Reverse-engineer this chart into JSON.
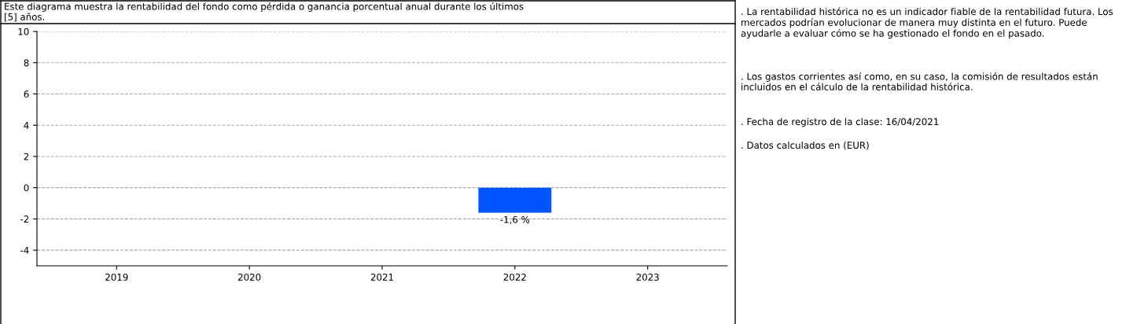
{
  "chart_data": {
    "type": "bar",
    "title": "Este diagrama muestra la rentabilidad del fondo como pérdida o ganancia porcentual anual durante los últimos\n[5] años.",
    "categories": [
      "2019",
      "2020",
      "2021",
      "2022",
      "2023"
    ],
    "series": [
      {
        "color": "#0055ff",
        "values": [
          null,
          null,
          null,
          -1.6,
          null
        ],
        "value_labels": [
          null,
          null,
          null,
          "-1,6 %",
          null
        ]
      }
    ],
    "ylim": [
      -5,
      10
    ],
    "yticks": [
      -4,
      -2,
      0,
      2,
      4,
      6,
      8,
      10
    ],
    "grid": "y",
    "line_style": "dashed",
    "annotations": [
      ". La rentabilidad histórica no es un indicador fiable de la rentabilidad futura. Los mercados podrían evolucionar de manera muy distinta en el futuro. Puede ayudarle a evaluar cómo se ha gestionado el fondo en el pasado.",
      ". Los gastos corrientes así como, en su caso, la comisión de resultados están incluidos en el cálculo de la rentabilidad histórica.",
      ". Fecha de registro de la clase: 16/04/2021",
      ". Datos calculados en (EUR)"
    ]
  }
}
